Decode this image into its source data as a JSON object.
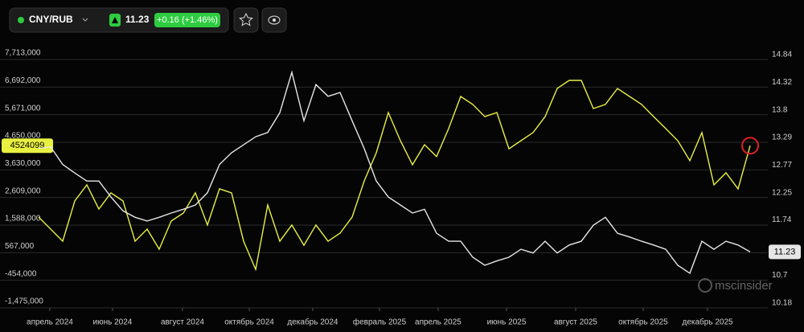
{
  "header": {
    "symbol": "CNY/RUB",
    "price": 11.23,
    "change": "+0.16 (+1.46%)",
    "logo": "mscinsider"
  },
  "chart_data": {
    "type": "line",
    "xticks": [
      {
        "value": 0.93,
        "label": "апрель 2024"
      },
      {
        "value": 6.13,
        "label": "июнь 2024"
      },
      {
        "value": 11.93,
        "label": "август 2024"
      },
      {
        "value": 17.47,
        "label": "октябрь 2024"
      },
      {
        "value": 22.73,
        "label": "декабрь 2024"
      },
      {
        "value": 28.27,
        "label": "февраль 2025"
      },
      {
        "value": 33.13,
        "label": "апрель 2025"
      },
      {
        "value": 38.8,
        "label": "июнь 2025"
      },
      {
        "value": 44.53,
        "label": "август 2025"
      },
      {
        "value": 50.13,
        "label": "октябрь 2025"
      },
      {
        "value": 55.47,
        "label": "декабрь 2025"
      }
    ],
    "xlim": [
      0,
      59
    ],
    "ylim": [
      -1475000,
      7713000
    ],
    "yticks": [
      {
        "value": 7713000,
        "label": "7,713,000"
      },
      {
        "value": 6692000,
        "label": "6,692,000"
      },
      {
        "value": 5671000,
        "label": "5,671,000"
      },
      {
        "value": 4650000,
        "label": "4,650,000"
      },
      {
        "value": 3630000,
        "label": "3,630,000"
      },
      {
        "value": 2609000,
        "label": "2,609,000"
      },
      {
        "value": 1588000,
        "label": "1,588,000"
      },
      {
        "value": 567000,
        "label": "567,000"
      },
      {
        "value": -454000,
        "label": "-454,000"
      },
      {
        "value": -1475000,
        "label": "-1,475,000"
      }
    ],
    "y2lim": [
      10.18,
      14.84
    ],
    "y2ticks": [
      14.84,
      14.32,
      13.8,
      13.29,
      12.77,
      12.25,
      11.74,
      10.7,
      10.18
    ],
    "grid": true,
    "series": [
      {
        "color": "#e8f040",
        "values": [
          1885000,
          1440000,
          993000,
          2480000,
          3075000,
          2180000,
          2780000,
          2480000,
          990000,
          1440000,
          695000,
          1740000,
          2030000,
          2780000,
          1590000,
          2930000,
          2780000,
          990000,
          -50000,
          2330000,
          990000,
          1590000,
          840000,
          1590000,
          990000,
          1290000,
          1885000,
          3220000,
          4260000,
          5750000,
          4710000,
          3820000,
          4560000,
          4120000,
          5160000,
          6345000,
          6050000,
          5600000,
          5750000,
          4410000,
          4710000,
          5010000,
          5600000,
          6640000,
          6940000,
          6940000,
          5900000,
          6050000,
          6640000,
          6345000,
          6050000,
          5600000,
          5160000,
          4710000,
          3970000,
          5010000,
          3075000,
          3520000,
          2930000,
          4524099
        ]
      },
      {
        "color": "#e6e6e6",
        "axis": "y2",
        "values": [
          13.17,
          13.2,
          12.87,
          12.71,
          12.56,
          12.56,
          12.26,
          12.0,
          11.88,
          11.81,
          11.88,
          11.96,
          12.03,
          12.11,
          12.34,
          12.87,
          13.09,
          13.24,
          13.39,
          13.47,
          13.84,
          14.6,
          13.69,
          14.37,
          14.15,
          14.22,
          13.69,
          13.17,
          12.56,
          12.26,
          12.11,
          11.96,
          12.03,
          11.58,
          11.43,
          11.43,
          11.13,
          10.98,
          11.06,
          11.13,
          11.28,
          11.21,
          11.43,
          11.21,
          11.36,
          11.43,
          11.73,
          11.88,
          11.58,
          11.51,
          11.43,
          11.36,
          11.28,
          10.98,
          10.83,
          11.43,
          11.28,
          11.43,
          11.36,
          11.23
        ]
      }
    ]
  }
}
